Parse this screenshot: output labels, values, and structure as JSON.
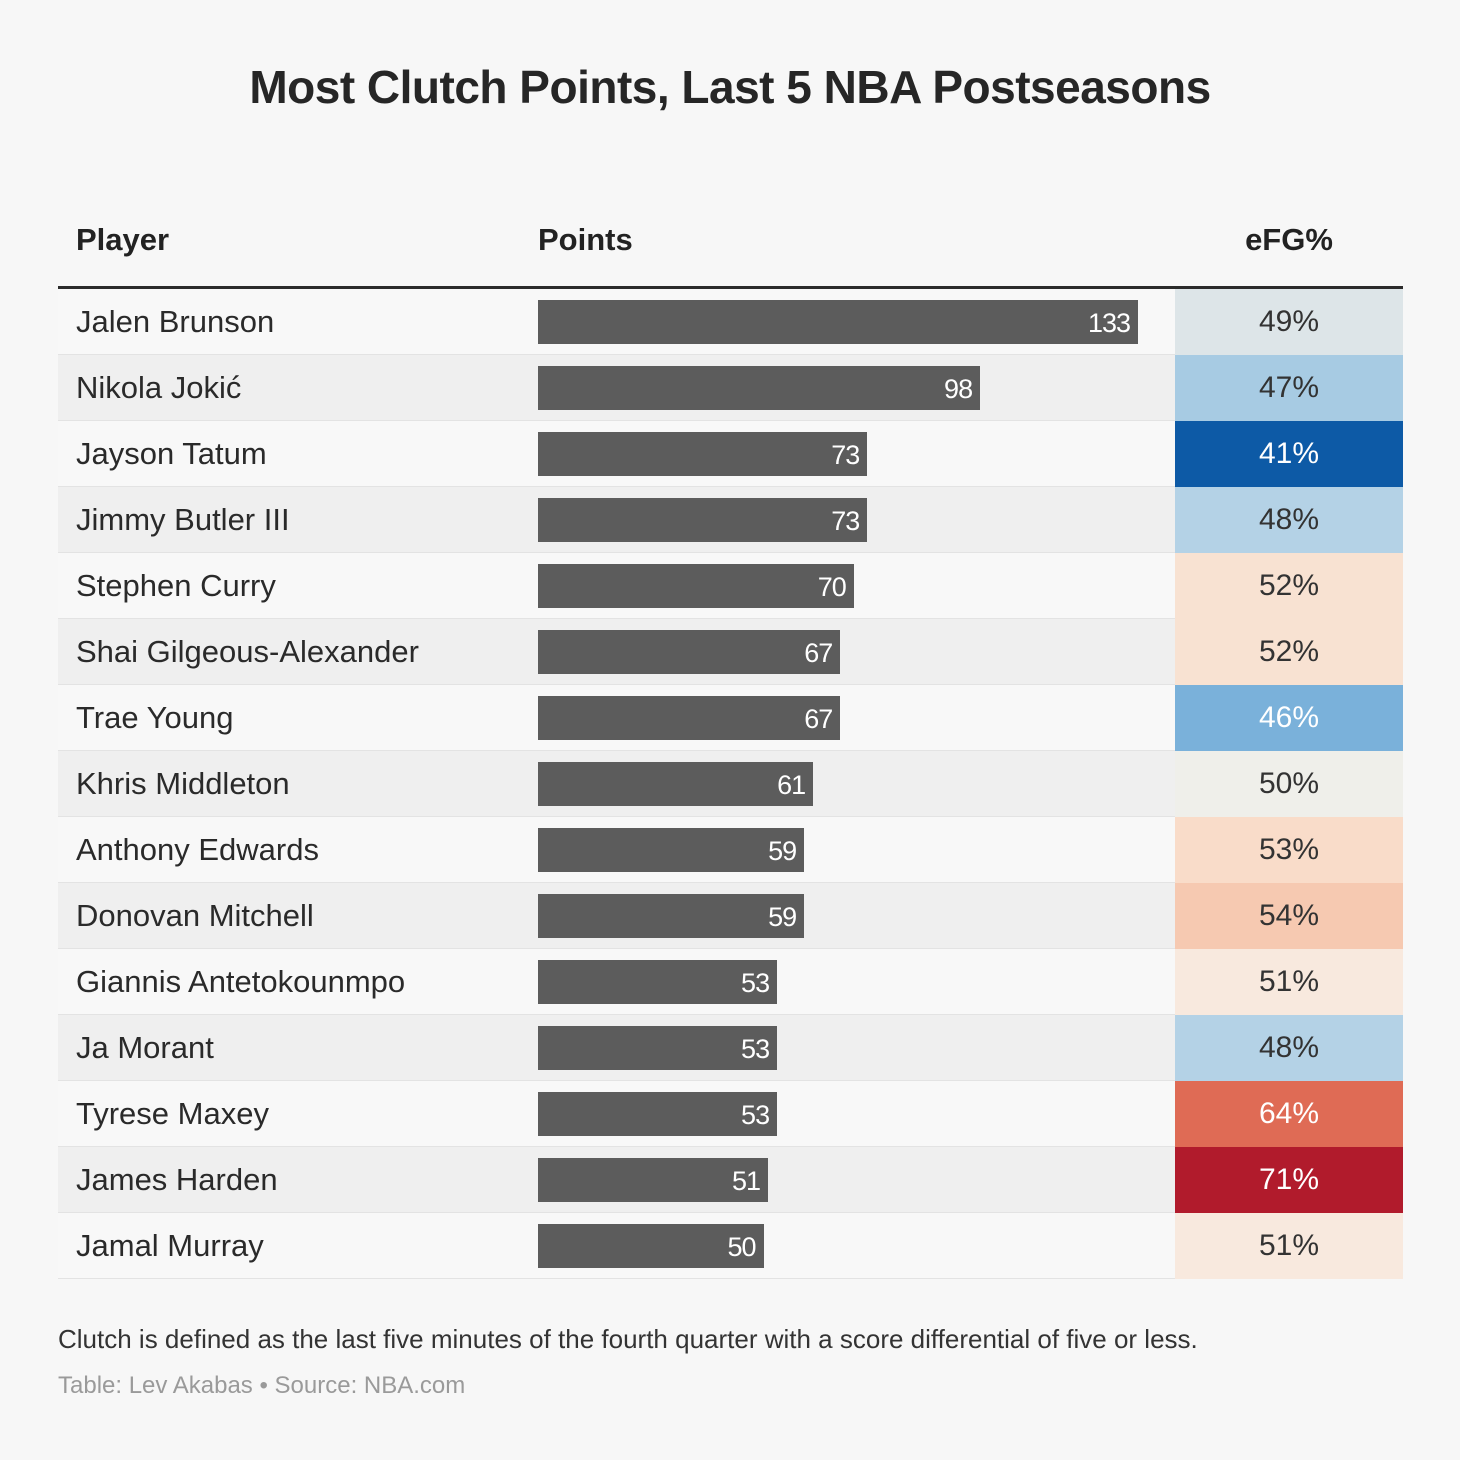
{
  "title": "Most Clutch Points, Last 5 NBA Postseasons",
  "columns": {
    "player": "Player",
    "points": "Points",
    "efg": "eFG%"
  },
  "footnote": "Clutch is defined as the last five minutes of the fourth quarter with a score differential of five or less.",
  "credit": "Table: Lev Akabas • Source: NBA.com",
  "chart_data": {
    "type": "table",
    "title": "Most Clutch Points, Last 5 NBA Postseasons",
    "columns": [
      "Player",
      "Points",
      "eFG%"
    ],
    "points_max": 133,
    "rows": [
      {
        "player": "Jalen Brunson",
        "points": 133,
        "efg": "49%",
        "efg_color": "#dde5e8",
        "efg_text": "#333333"
      },
      {
        "player": "Nikola Jokić",
        "points": 98,
        "efg": "47%",
        "efg_color": "#a7cbe3",
        "efg_text": "#333333"
      },
      {
        "player": "Jayson Tatum",
        "points": 73,
        "efg": "41%",
        "efg_color": "#0d5aa6",
        "efg_text": "#ffffff"
      },
      {
        "player": "Jimmy Butler III",
        "points": 73,
        "efg": "48%",
        "efg_color": "#b4d2e6",
        "efg_text": "#333333"
      },
      {
        "player": "Stephen Curry",
        "points": 70,
        "efg": "52%",
        "efg_color": "#f8e2d2",
        "efg_text": "#333333"
      },
      {
        "player": "Shai Gilgeous-Alexander",
        "points": 67,
        "efg": "52%",
        "efg_color": "#f8e2d2",
        "efg_text": "#333333"
      },
      {
        "player": "Trae Young",
        "points": 67,
        "efg": "46%",
        "efg_color": "#7ab1da",
        "efg_text": "#ffffff"
      },
      {
        "player": "Khris Middleton",
        "points": 61,
        "efg": "50%",
        "efg_color": "#efefea",
        "efg_text": "#333333"
      },
      {
        "player": "Anthony Edwards",
        "points": 59,
        "efg": "53%",
        "efg_color": "#f9dcc9",
        "efg_text": "#333333"
      },
      {
        "player": "Donovan Mitchell",
        "points": 59,
        "efg": "54%",
        "efg_color": "#f6c9b1",
        "efg_text": "#333333"
      },
      {
        "player": "Giannis Antetokounmpo",
        "points": 53,
        "efg": "51%",
        "efg_color": "#f8e9de",
        "efg_text": "#333333"
      },
      {
        "player": "Ja Morant",
        "points": 53,
        "efg": "48%",
        "efg_color": "#b4d2e6",
        "efg_text": "#333333"
      },
      {
        "player": "Tyrese Maxey",
        "points": 53,
        "efg": "64%",
        "efg_color": "#df6b55",
        "efg_text": "#ffffff"
      },
      {
        "player": "James Harden",
        "points": 51,
        "efg": "71%",
        "efg_color": "#b11b2c",
        "efg_text": "#ffffff"
      },
      {
        "player": "Jamal Murray",
        "points": 50,
        "efg": "51%",
        "efg_color": "#f8e9de",
        "efg_text": "#333333"
      }
    ]
  }
}
